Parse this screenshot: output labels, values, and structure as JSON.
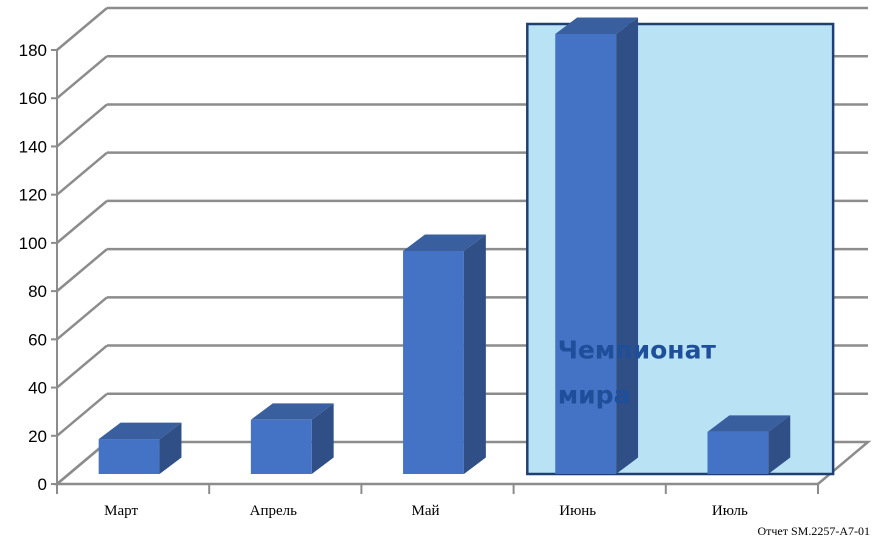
{
  "chart_data": {
    "type": "bar",
    "categories": [
      "Март",
      "Апрель",
      "Май",
      "Июнь",
      "Июль"
    ],
    "values": [
      12,
      20,
      90,
      180,
      15
    ],
    "ylim": [
      0,
      180
    ],
    "yticks": [
      0,
      20,
      40,
      60,
      80,
      100,
      120,
      140,
      160,
      180
    ],
    "grid": true,
    "three_d": true,
    "bar_color": "#4472c4",
    "highlight": {
      "category": "Июнь",
      "span_categories": [
        "Июнь",
        "Июль"
      ],
      "label": "Чемпионат мира",
      "fill": "#b9e3f4",
      "stroke": "#1f3f73"
    }
  },
  "footer": "Отчет SM.2257-A7-01"
}
